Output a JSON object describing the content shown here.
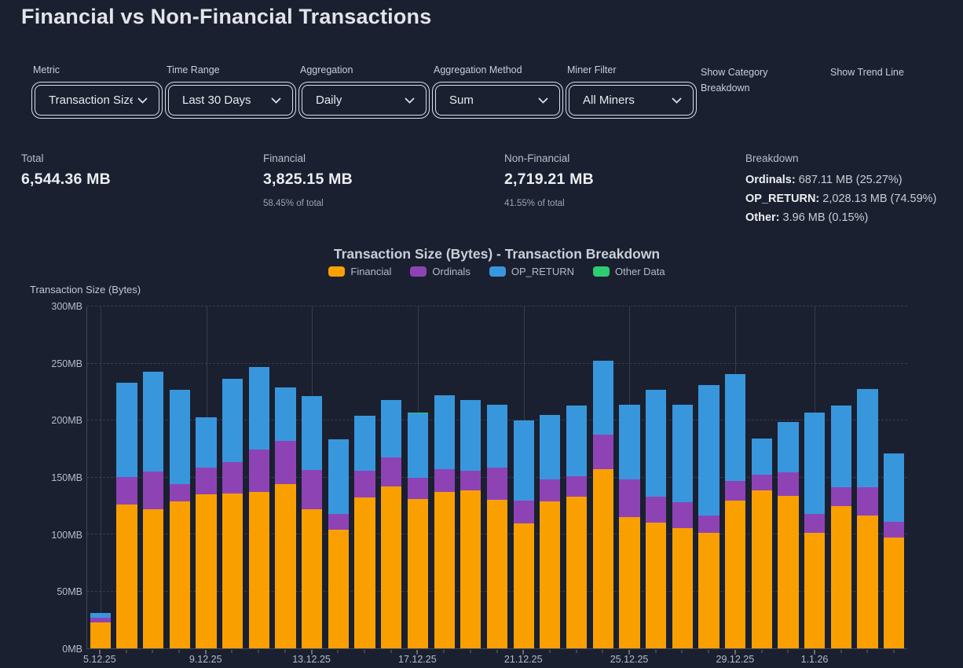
{
  "page": {
    "title": "Financial vs Non-Financial Transactions"
  },
  "filters": [
    {
      "label": "Metric",
      "value": "Transaction Size"
    },
    {
      "label": "Time Range",
      "value": "Last 30 Days"
    },
    {
      "label": "Aggregation",
      "value": "Daily"
    },
    {
      "label": "Aggregation Method",
      "value": "Sum"
    },
    {
      "label": "Miner Filter",
      "value": "All Miners"
    },
    {
      "label": "Show Category Breakdown"
    },
    {
      "label": "Show Trend Line"
    }
  ],
  "stats": {
    "total": {
      "label": "Total",
      "value": "6,544.36 MB"
    },
    "financial": {
      "label": "Financial",
      "value": "3,825.15 MB",
      "sub": "58.45% of total"
    },
    "non_financial": {
      "label": "Non-Financial",
      "value": "2,719.21 MB",
      "sub": "41.55% of total"
    },
    "breakdown": {
      "label": "Breakdown",
      "lines": [
        {
          "name": "Ordinals:",
          "value": "687.11 MB (25.27%)"
        },
        {
          "name": "OP_RETURN:",
          "value": "2,028.13 MB (74.59%)"
        },
        {
          "name": "Other:",
          "value": "3.96 MB (0.15%)"
        }
      ]
    }
  },
  "chart_data": {
    "type": "bar",
    "stacked": true,
    "title": "Transaction Size (Bytes) - Transaction Breakdown",
    "ylabel": "Transaction Size (Bytes)",
    "ylim": [
      0,
      300
    ],
    "y_tick_step": 50,
    "y_tick_suffix": "MB",
    "grid": true,
    "legend_position": "top",
    "categories": [
      "5.12.25",
      "6.12.25",
      "7.12.25",
      "8.12.25",
      "9.12.25",
      "10.12.25",
      "11.12.25",
      "12.12.25",
      "13.12.25",
      "14.12.25",
      "15.12.25",
      "16.12.25",
      "17.12.25",
      "18.12.25",
      "19.12.25",
      "20.12.25",
      "21.12.25",
      "22.12.25",
      "23.12.25",
      "24.12.25",
      "25.12.25",
      "26.12.25",
      "27.12.25",
      "28.12.25",
      "29.12.25",
      "30.12.25",
      "31.12.25",
      "1.1.26",
      "2.1.26",
      "3.1.26",
      "4.1.26"
    ],
    "x_labeled_ticks": [
      {
        "index": 0,
        "label": "5.12.25"
      },
      {
        "index": 4,
        "label": "9.12.25"
      },
      {
        "index": 8,
        "label": "13.12.25"
      },
      {
        "index": 12,
        "label": "17.12.25"
      },
      {
        "index": 16,
        "label": "21.12.25"
      },
      {
        "index": 20,
        "label": "25.12.25"
      },
      {
        "index": 24,
        "label": "29.12.25"
      },
      {
        "index": 27,
        "label": "1.1.26"
      }
    ],
    "series": [
      {
        "name": "Financial",
        "color": "#F9A000",
        "values": [
          22.4,
          125.6,
          122.0,
          129.0,
          135.0,
          135.6,
          137.0,
          144.0,
          121.5,
          104.0,
          132.3,
          142.0,
          131.0,
          137.0,
          138.4,
          130.0,
          109.5,
          129.0,
          132.5,
          157.0,
          115.0,
          110.0,
          105.0,
          101.5,
          129.6,
          138.0,
          133.7,
          101.4,
          124.5,
          116.4,
          97.2
        ]
      },
      {
        "name": "Ordinals",
        "color": "#8E43B5",
        "values": [
          4.6,
          24.3,
          32.5,
          15.0,
          23.0,
          27.7,
          37.0,
          38.0,
          35.0,
          14.0,
          23.0,
          25.0,
          18.0,
          20.0,
          17.3,
          28.0,
          19.6,
          19.0,
          18.0,
          30.0,
          33.0,
          22.5,
          23.0,
          14.6,
          16.8,
          13.8,
          20.3,
          16.6,
          16.6,
          24.7,
          13.4
        ]
      },
      {
        "name": "OP_RETURN",
        "color": "#3897DC",
        "values": [
          3.7,
          82.7,
          87.5,
          82.5,
          44.0,
          72.5,
          72.5,
          46.5,
          64.5,
          65.0,
          48.5,
          50.3,
          57.0,
          64.5,
          61.6,
          55.4,
          70.4,
          56.2,
          62.2,
          64.7,
          65.4,
          93.6,
          85.4,
          114.6,
          93.5,
          31.6,
          44.4,
          88.5,
          71.6,
          86.1,
          60.0
        ]
      },
      {
        "name": "Other Data",
        "color": "#2ECC71",
        "values": [
          0.13,
          0.13,
          0.13,
          0.13,
          0.13,
          0.13,
          0.13,
          0.13,
          0.13,
          0.13,
          0.13,
          0.13,
          0.13,
          0.13,
          0.13,
          0.13,
          0.13,
          0.13,
          0.13,
          0.13,
          0.13,
          0.13,
          0.13,
          0.13,
          0.13,
          0.13,
          0.13,
          0.13,
          0.13,
          0.13,
          0.13
        ]
      }
    ]
  }
}
